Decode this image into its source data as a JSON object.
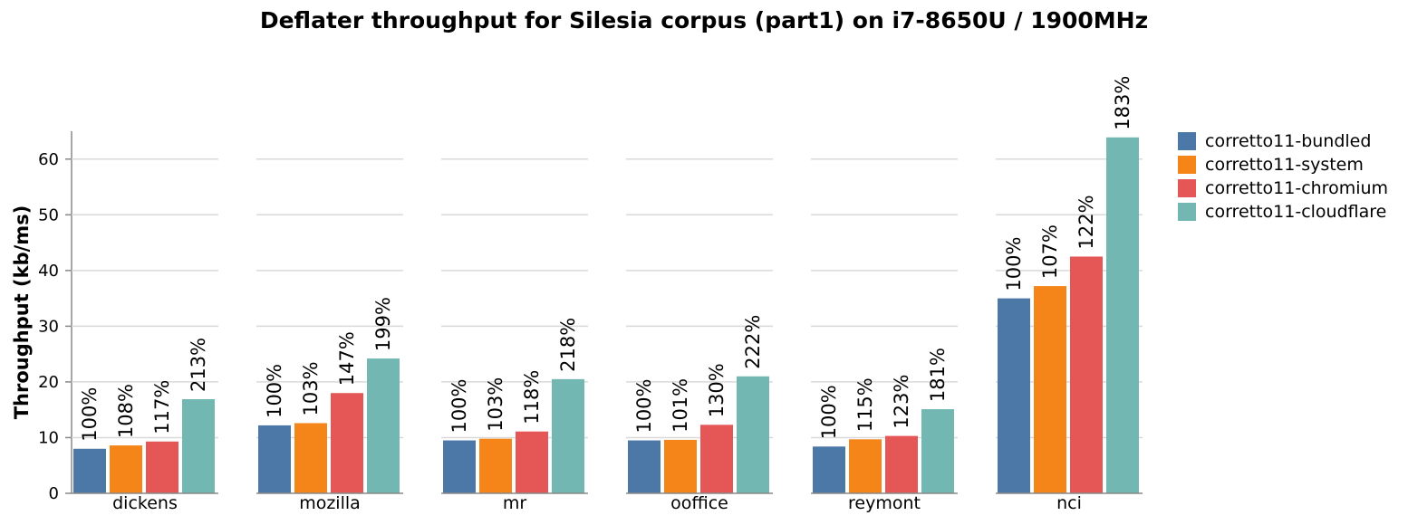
{
  "chart_data": {
    "type": "bar",
    "title": "Deflater throughput for Silesia corpus (part1) on i7-8650U / 1900MHz",
    "ylabel": "Throughput (kb/ms)",
    "xlabel": "",
    "ylim": [
      0,
      65
    ],
    "yticks": [
      "0",
      "10",
      "20",
      "30",
      "40",
      "50",
      "60"
    ],
    "ytick_values": [
      0,
      10,
      20,
      30,
      40,
      50,
      60
    ],
    "grid": true,
    "legend_position": "top-right",
    "categories": [
      "dickens",
      "mozilla",
      "mr",
      "ooffice",
      "reymont",
      "nci"
    ],
    "series": [
      {
        "name": "corretto11-bundled",
        "color": "#4c78a8",
        "values": [
          8.0,
          12.2,
          9.5,
          9.5,
          8.4,
          35.0
        ],
        "labels": [
          "100%",
          "100%",
          "100%",
          "100%",
          "100%",
          "100%"
        ]
      },
      {
        "name": "corretto11-system",
        "color": "#f58518",
        "values": [
          8.6,
          12.6,
          9.8,
          9.6,
          9.7,
          37.2
        ],
        "labels": [
          "108%",
          "103%",
          "103%",
          "101%",
          "115%",
          "107%"
        ]
      },
      {
        "name": "corretto11-chromium",
        "color": "#e45756",
        "values": [
          9.3,
          18.0,
          11.1,
          12.3,
          10.3,
          42.5
        ],
        "labels": [
          "117%",
          "147%",
          "118%",
          "130%",
          "123%",
          "122%"
        ]
      },
      {
        "name": "corretto11-cloudflare",
        "color": "#72b7b2",
        "values": [
          16.9,
          24.2,
          20.5,
          21.0,
          15.1,
          63.9
        ],
        "labels": [
          "213%",
          "199%",
          "218%",
          "222%",
          "181%",
          "183%"
        ]
      }
    ]
  }
}
